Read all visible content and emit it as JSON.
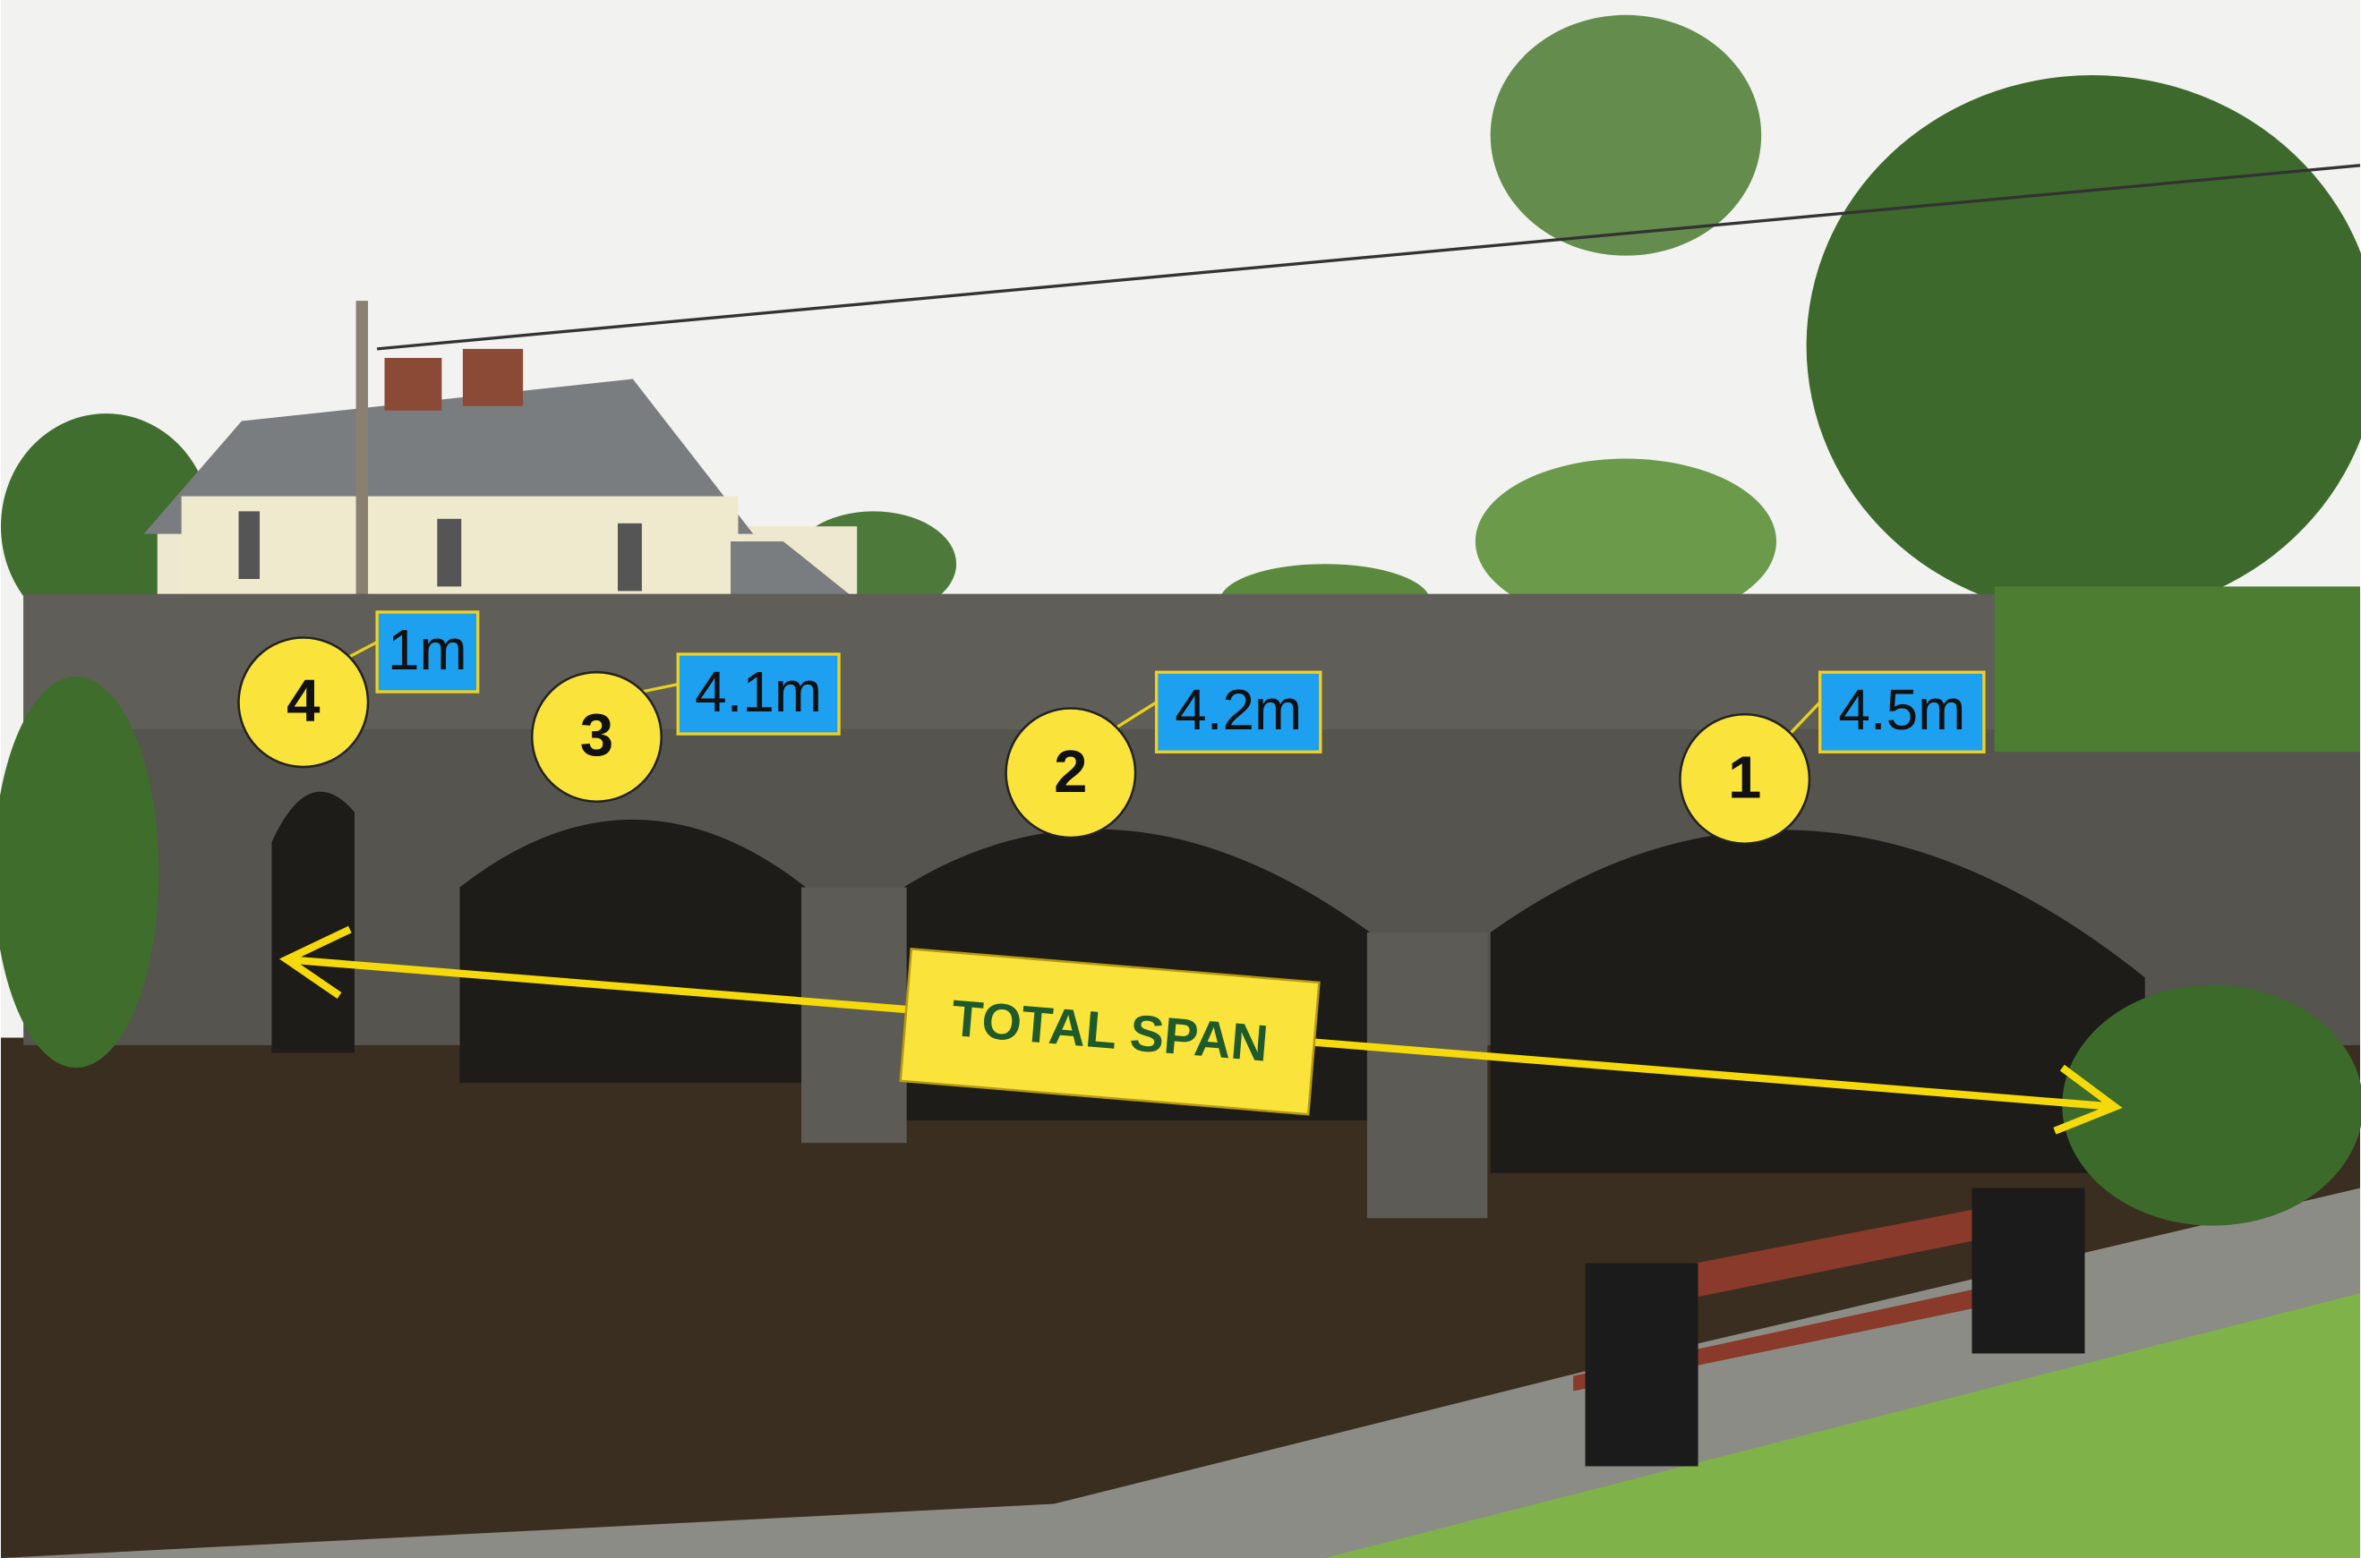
{
  "annotations": {
    "spans": [
      {
        "number": "4",
        "length": "1m"
      },
      {
        "number": "3",
        "length": "4.1m"
      },
      {
        "number": "2",
        "length": "4.2m"
      },
      {
        "number": "1",
        "length": "4.5m"
      }
    ],
    "total_label": "TOTAL SPAN"
  }
}
